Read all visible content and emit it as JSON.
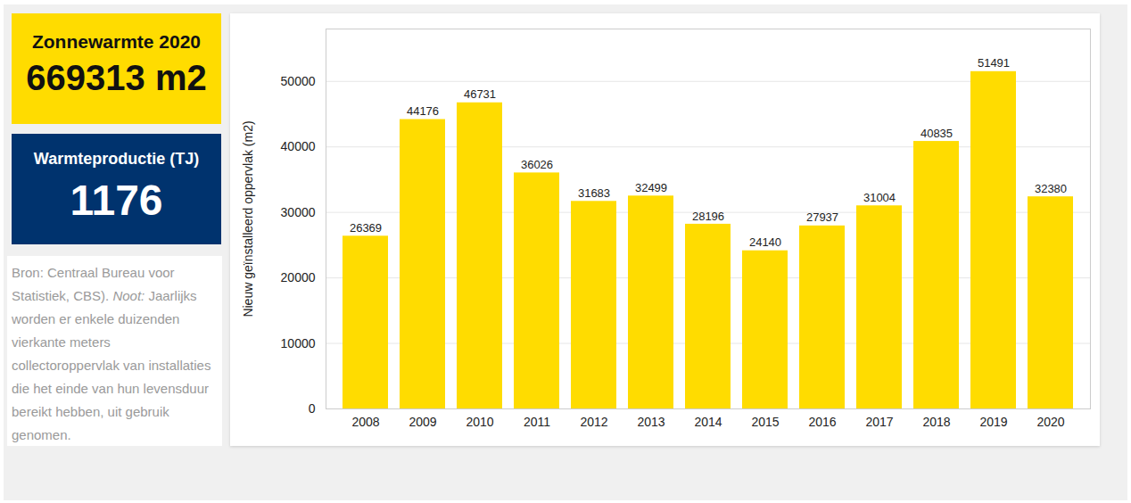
{
  "chart_data": {
    "type": "bar",
    "y_label": "Nieuw geïnstalleerd oppervlak (m2)",
    "categories": [
      "2008",
      "2009",
      "2010",
      "2011",
      "2012",
      "2013",
      "2014",
      "2015",
      "2016",
      "2017",
      "2018",
      "2019",
      "2020"
    ],
    "values": [
      26369,
      44176,
      46731,
      36026,
      31683,
      32499,
      28196,
      24140,
      27937,
      31004,
      40835,
      51491,
      32380
    ],
    "color": "#ffdc00",
    "ylim": [
      0,
      58000
    ],
    "yticks": [
      0,
      10000,
      20000,
      30000,
      40000,
      50000
    ],
    "grid": true,
    "data_labels": true
  },
  "panels": [
    {
      "title": "Zonnewarmte 2020",
      "value": "669313 m2"
    },
    {
      "title": "Warmteproductie (TJ)",
      "value": 1176
    }
  ],
  "source": "Bron: Centraal Bureau voor Statistiek, CBS).",
  "note_label": "Noot:",
  "note": "Jaarlijks worden er enkele duizenden vierkante meters collectoroppervlak van installaties die het einde van hun levensduur bereikt hebben, uit gebruik genomen."
}
